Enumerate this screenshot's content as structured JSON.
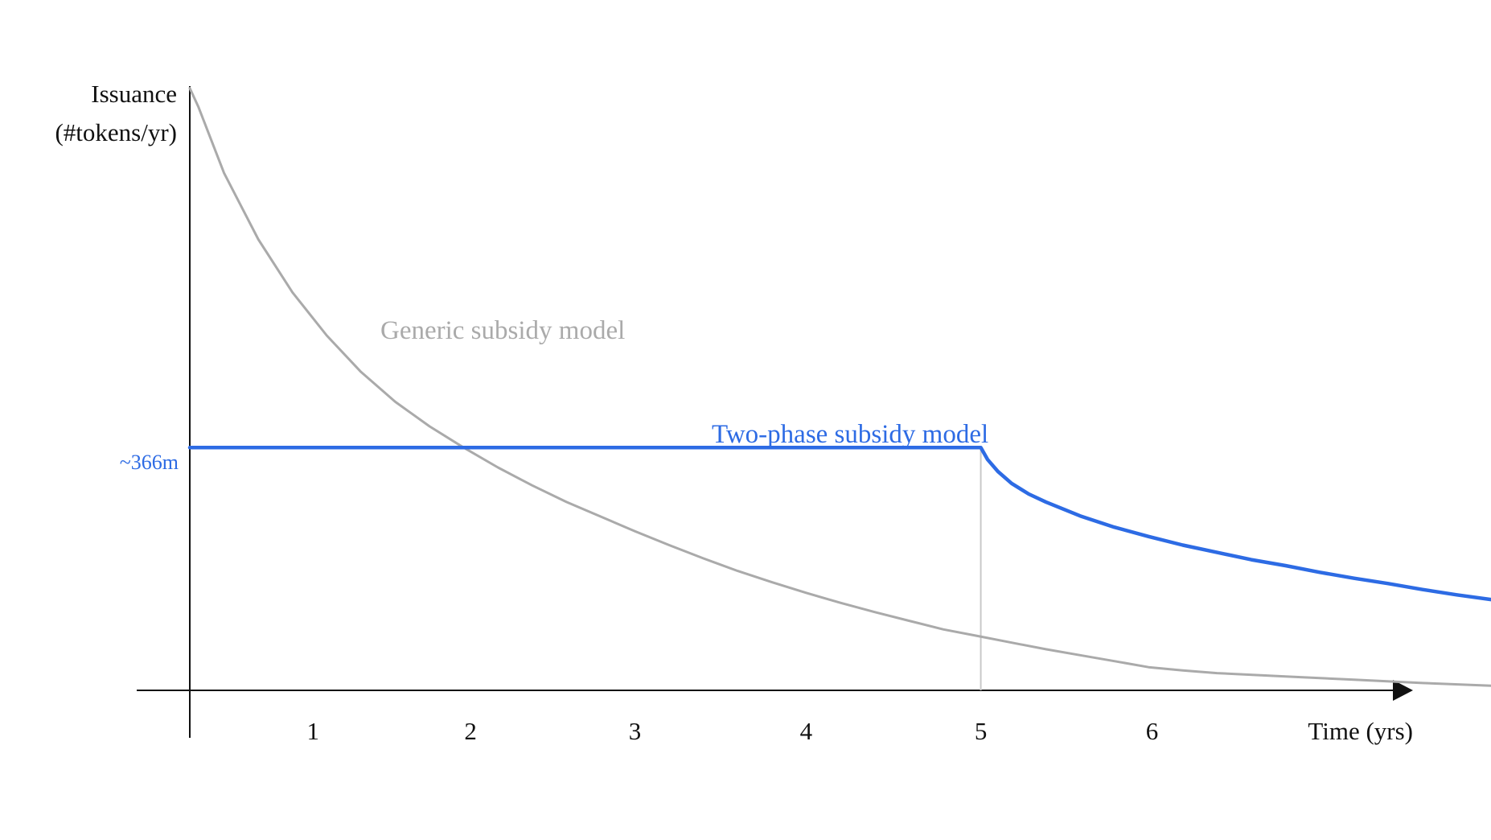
{
  "chart_data": {
    "type": "line",
    "ylabel_line1": "Issuance",
    "ylabel_line2": "(#tokens/yr)",
    "xlabel": "Time (yrs)",
    "xlim": [
      0,
      7.6
    ],
    "ylim": [
      0,
      1030
    ],
    "x_ticks": [
      "1",
      "2",
      "3",
      "4",
      "5",
      "6"
    ],
    "x_tick_values": [
      0.72,
      1.64,
      2.6,
      3.6,
      4.62,
      5.62
    ],
    "y_reference": {
      "label": "~366m",
      "value": 366,
      "color": "#2d6be4"
    },
    "phase_boundary_x": 4.62,
    "series": [
      {
        "name": "Generic subsidy model",
        "color": "#aaaaaa",
        "x": [
          0,
          0.05,
          0.2,
          0.4,
          0.6,
          0.8,
          1.0,
          1.2,
          1.4,
          1.6,
          1.8,
          2.0,
          2.2,
          2.4,
          2.6,
          2.8,
          3.0,
          3.2,
          3.4,
          3.6,
          3.8,
          4.0,
          4.2,
          4.4,
          4.6,
          4.8,
          5.0,
          5.2,
          5.4,
          5.6,
          5.8,
          6.0,
          6.4,
          6.8,
          7.2,
          7.6
        ],
        "y": [
          908,
          880,
          780,
          680,
          600,
          535,
          480,
          435,
          398,
          366,
          336,
          309,
          284,
          262,
          240,
          219,
          199,
          180,
          163,
          147,
          132,
          118,
          105,
          92,
          82,
          72,
          62,
          53,
          44,
          35,
          30,
          26,
          21,
          16,
          11,
          7
        ]
      },
      {
        "name": "Two-phase subsidy model",
        "color": "#2d6be4",
        "x": [
          0,
          4.62,
          4.66,
          4.72,
          4.8,
          4.9,
          5.0,
          5.2,
          5.4,
          5.6,
          5.8,
          6.0,
          6.2,
          6.4,
          6.6,
          6.8,
          7.0,
          7.2,
          7.4,
          7.6
        ],
        "y": [
          366,
          366,
          348,
          330,
          312,
          296,
          284,
          263,
          246,
          232,
          219,
          208,
          197,
          188,
          178,
          169,
          161,
          152,
          144,
          137
        ]
      }
    ],
    "annotations": [
      {
        "text": "Generic subsidy model",
        "series": 0
      },
      {
        "text": "Two-phase subsidy model",
        "series": 1
      }
    ]
  }
}
